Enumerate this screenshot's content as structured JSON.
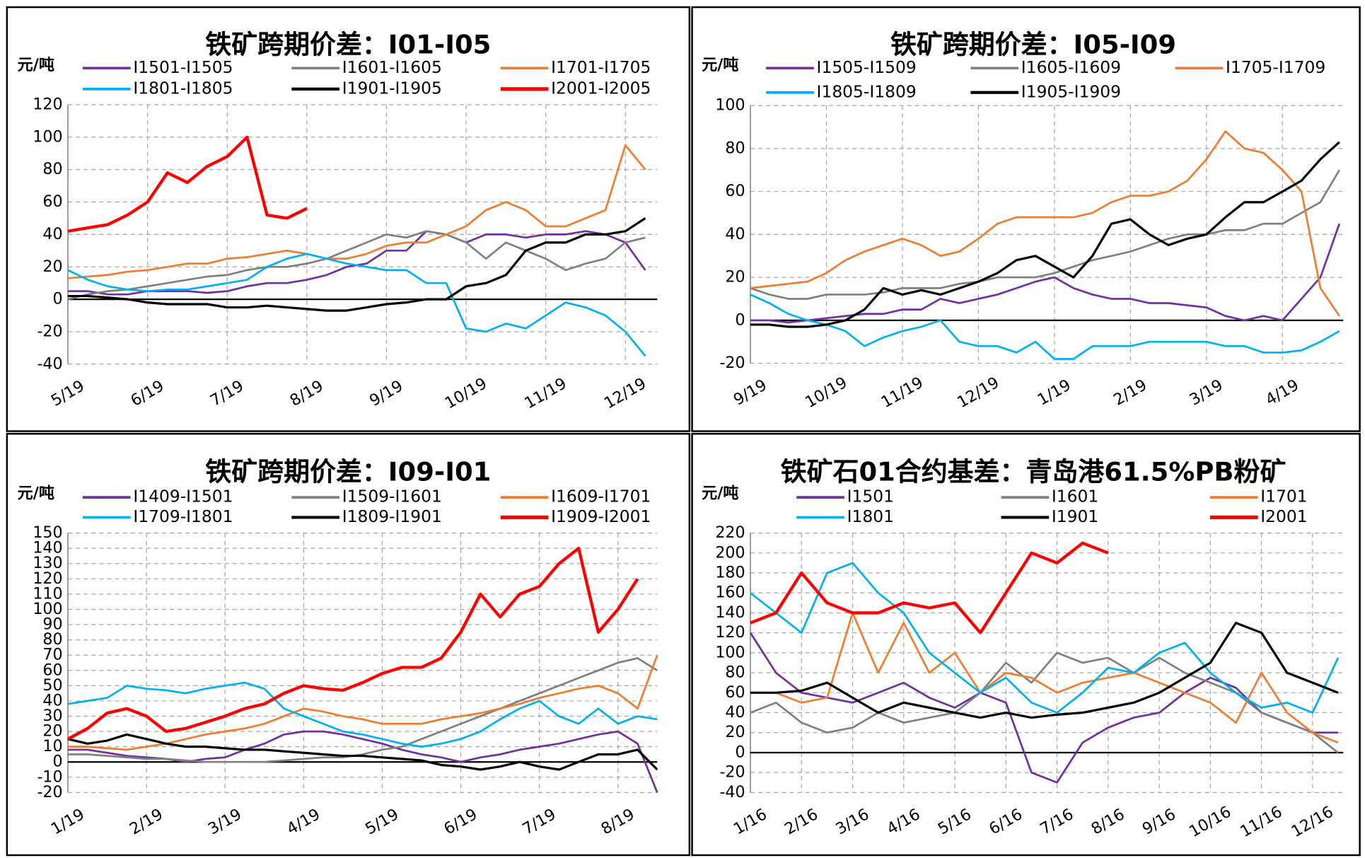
{
  "chart_data": [
    {
      "type": "line",
      "title": "铁矿跨期价差：I01-I05",
      "unit": "元/吨",
      "x": [
        0,
        0.25,
        0.5,
        0.75,
        1,
        1.25,
        1.5,
        1.75,
        2,
        2.25,
        2.5,
        2.75,
        3,
        3.25,
        3.5,
        3.75,
        4,
        4.25,
        4.5,
        4.75,
        5,
        5.25,
        5.5,
        5.75,
        6,
        6.25,
        6.5,
        6.75,
        7,
        7.25
      ],
      "xlim": [
        0,
        7.4
      ],
      "xticks": [
        {
          "value": 0,
          "label": "5/19"
        },
        {
          "value": 1,
          "label": "6/19"
        },
        {
          "value": 2,
          "label": "7/19"
        },
        {
          "value": 3,
          "label": "8/19"
        },
        {
          "value": 4,
          "label": "9/19"
        },
        {
          "value": 5,
          "label": "10/19"
        },
        {
          "value": 6,
          "label": "11/19"
        },
        {
          "value": 7,
          "label": "12/19"
        }
      ],
      "ylim": [
        -40,
        120
      ],
      "yticks": [
        -40,
        -20,
        0,
        20,
        40,
        60,
        80,
        100,
        120
      ],
      "grid": true,
      "series": [
        {
          "name": "I1501-I1505",
          "color": "#7030a0",
          "values": [
            5,
            5,
            3,
            3,
            5,
            5,
            5,
            4,
            5,
            8,
            10,
            10,
            12,
            15,
            20,
            22,
            30,
            30,
            42,
            40,
            35,
            40,
            40,
            38,
            40,
            40,
            42,
            40,
            35,
            18
          ]
        },
        {
          "name": "I1601-I1605",
          "color": "#808080",
          "values": [
            0,
            3,
            5,
            6,
            8,
            10,
            12,
            14,
            15,
            18,
            20,
            20,
            22,
            25,
            30,
            35,
            40,
            38,
            42,
            40,
            35,
            25,
            35,
            30,
            25,
            18,
            22,
            25,
            35,
            38
          ]
        },
        {
          "name": "I1701-I1705",
          "color": "#ed7d31",
          "values": [
            13,
            14,
            15,
            17,
            18,
            20,
            22,
            22,
            25,
            26,
            28,
            30,
            28,
            25,
            25,
            28,
            33,
            35,
            35,
            40,
            45,
            55,
            60,
            55,
            45,
            45,
            50,
            55,
            95,
            80
          ]
        },
        {
          "name": "I1801-I1805",
          "color": "#00b0f0",
          "values": [
            18,
            12,
            8,
            6,
            5,
            6,
            6,
            8,
            10,
            12,
            20,
            25,
            28,
            25,
            22,
            20,
            18,
            18,
            10,
            10,
            -18,
            -20,
            -15,
            -18,
            -10,
            -2,
            -5,
            -10,
            -20,
            -35
          ]
        },
        {
          "name": "I1901-I1905",
          "color": "#000000",
          "values": [
            2,
            2,
            1,
            0,
            -2,
            -3,
            -3,
            -3,
            -5,
            -5,
            -4,
            -5,
            -6,
            -7,
            -7,
            -5,
            -3,
            -2,
            0,
            0,
            8,
            10,
            15,
            30,
            35,
            35,
            40,
            40,
            42,
            50
          ]
        },
        {
          "name": "I2001-I2005",
          "color": "#ff0000",
          "values": [
            42,
            44,
            46,
            52,
            60,
            78,
            72,
            82,
            88,
            100,
            52,
            50,
            56,
            null,
            null,
            null,
            null,
            null,
            null,
            null,
            null,
            null,
            null,
            null,
            null,
            null,
            null,
            null,
            null,
            null
          ]
        }
      ]
    },
    {
      "type": "line",
      "title": "铁矿跨期价差：I05-I09",
      "unit": "元/吨",
      "x": [
        0,
        0.25,
        0.5,
        0.75,
        1,
        1.25,
        1.5,
        1.75,
        2,
        2.25,
        2.5,
        2.75,
        3,
        3.25,
        3.5,
        3.75,
        4,
        4.25,
        4.5,
        4.75,
        5,
        5.25,
        5.5,
        5.75,
        6,
        6.25,
        6.5,
        6.75,
        7,
        7.25,
        7.5,
        7.75
      ],
      "xlim": [
        0,
        7.8
      ],
      "xticks": [
        {
          "value": 0,
          "label": "9/19"
        },
        {
          "value": 1,
          "label": "10/19"
        },
        {
          "value": 2,
          "label": "11/19"
        },
        {
          "value": 3,
          "label": "12/19"
        },
        {
          "value": 4,
          "label": "1/19"
        },
        {
          "value": 5,
          "label": "2/19"
        },
        {
          "value": 6,
          "label": "3/19"
        },
        {
          "value": 7,
          "label": "4/19"
        }
      ],
      "ylim": [
        -20,
        100
      ],
      "yticks": [
        -20,
        0,
        20,
        40,
        60,
        80,
        100
      ],
      "grid": true,
      "series": [
        {
          "name": "I1505-I1509",
          "color": "#7030a0",
          "values": [
            0,
            0,
            -1,
            0,
            1,
            2,
            3,
            3,
            5,
            5,
            10,
            8,
            10,
            12,
            15,
            18,
            20,
            15,
            12,
            10,
            10,
            8,
            8,
            7,
            6,
            2,
            0,
            2,
            0,
            10,
            20,
            45
          ]
        },
        {
          "name": "I1605-I1609",
          "color": "#808080",
          "values": [
            15,
            12,
            10,
            10,
            12,
            12,
            12,
            13,
            15,
            15,
            15,
            17,
            18,
            20,
            20,
            20,
            22,
            25,
            28,
            30,
            32,
            35,
            38,
            40,
            40,
            42,
            42,
            45,
            45,
            50,
            55,
            70
          ]
        },
        {
          "name": "I1705-I1709",
          "color": "#ed7d31",
          "values": [
            15,
            16,
            17,
            18,
            22,
            28,
            32,
            35,
            38,
            35,
            30,
            32,
            38,
            45,
            48,
            48,
            48,
            48,
            50,
            55,
            58,
            58,
            60,
            65,
            75,
            88,
            80,
            78,
            70,
            60,
            15,
            2
          ]
        },
        {
          "name": "I1805-I1809",
          "color": "#00b0f0",
          "values": [
            12,
            8,
            3,
            0,
            -2,
            -5,
            -12,
            -8,
            -5,
            -3,
            0,
            -10,
            -12,
            -12,
            -15,
            -10,
            -18,
            -18,
            -12,
            -12,
            -12,
            -10,
            -10,
            -10,
            -10,
            -12,
            -12,
            -15,
            -15,
            -14,
            -10,
            -5
          ]
        },
        {
          "name": "I1905-I1909",
          "color": "#000000",
          "values": [
            -2,
            -2,
            -3,
            -3,
            -2,
            0,
            5,
            15,
            12,
            14,
            12,
            15,
            18,
            22,
            28,
            30,
            25,
            20,
            30,
            45,
            47,
            40,
            35,
            38,
            40,
            48,
            55,
            55,
            60,
            65,
            75,
            83
          ]
        }
      ]
    },
    {
      "type": "line",
      "title": "铁矿跨期价差：I09-I01",
      "unit": "元/吨",
      "x": [
        0,
        0.25,
        0.5,
        0.75,
        1,
        1.25,
        1.5,
        1.75,
        2,
        2.25,
        2.5,
        2.75,
        3,
        3.25,
        3.5,
        3.75,
        4,
        4.25,
        4.5,
        4.75,
        5,
        5.25,
        5.5,
        5.75,
        6,
        6.25,
        6.5,
        6.75,
        7,
        7.25,
        7.5
      ],
      "xlim": [
        0,
        7.5
      ],
      "xticks": [
        {
          "value": 0,
          "label": "1/19"
        },
        {
          "value": 1,
          "label": "2/19"
        },
        {
          "value": 2,
          "label": "3/19"
        },
        {
          "value": 3,
          "label": "4/19"
        },
        {
          "value": 4,
          "label": "5/19"
        },
        {
          "value": 5,
          "label": "6/19"
        },
        {
          "value": 6,
          "label": "7/19"
        },
        {
          "value": 7,
          "label": "8/19"
        }
      ],
      "ylim": [
        -20,
        150
      ],
      "yticks": [
        -20,
        -10,
        0,
        10,
        20,
        30,
        40,
        50,
        60,
        70,
        80,
        90,
        100,
        110,
        120,
        130,
        140,
        150
      ],
      "grid": true,
      "series": [
        {
          "name": "I1409-I1501",
          "color": "#7030a0",
          "values": [
            8,
            8,
            6,
            4,
            3,
            2,
            0,
            2,
            3,
            8,
            12,
            18,
            20,
            20,
            18,
            15,
            12,
            8,
            5,
            3,
            0,
            3,
            5,
            8,
            10,
            12,
            15,
            18,
            20,
            12,
            -20
          ]
        },
        {
          "name": "I1509-I1601",
          "color": "#808080",
          "values": [
            5,
            5,
            4,
            3,
            2,
            2,
            1,
            0,
            0,
            0,
            0,
            1,
            2,
            3,
            3,
            5,
            8,
            10,
            15,
            20,
            25,
            30,
            35,
            40,
            45,
            50,
            55,
            60,
            65,
            68,
            60
          ]
        },
        {
          "name": "I1609-I1701",
          "color": "#ed7d31",
          "values": [
            10,
            10,
            9,
            8,
            10,
            12,
            15,
            18,
            20,
            22,
            25,
            30,
            35,
            33,
            30,
            28,
            25,
            25,
            25,
            28,
            30,
            32,
            35,
            38,
            42,
            45,
            48,
            50,
            45,
            35,
            70
          ]
        },
        {
          "name": "I1709-I1801",
          "color": "#00b0f0",
          "values": [
            38,
            40,
            42,
            50,
            48,
            47,
            45,
            48,
            50,
            52,
            48,
            35,
            30,
            25,
            20,
            18,
            15,
            12,
            10,
            12,
            15,
            20,
            28,
            35,
            40,
            30,
            25,
            35,
            25,
            30,
            28
          ]
        },
        {
          "name": "I1809-I1901",
          "color": "#000000",
          "values": [
            15,
            12,
            14,
            18,
            15,
            12,
            10,
            10,
            9,
            8,
            8,
            7,
            6,
            5,
            4,
            4,
            3,
            2,
            1,
            -2,
            -3,
            -5,
            -3,
            0,
            -3,
            -5,
            0,
            5,
            5,
            8,
            -5
          ]
        },
        {
          "name": "I1909-I2001",
          "color": "#ff0000",
          "values": [
            15,
            22,
            32,
            35,
            30,
            20,
            22,
            26,
            30,
            35,
            38,
            45,
            50,
            48,
            47,
            52,
            58,
            62,
            62,
            68,
            85,
            110,
            95,
            110,
            115,
            130,
            140,
            85,
            100,
            120,
            null
          ]
        }
      ]
    },
    {
      "type": "line",
      "title": "铁矿石01合约基差：青岛港61.5%PB粉矿",
      "unit": "元/吨",
      "x": [
        0,
        0.5,
        1,
        1.5,
        2,
        2.5,
        3,
        3.5,
        4,
        4.5,
        5,
        5.5,
        6,
        6.5,
        7,
        7.5,
        8,
        8.5,
        9,
        9.5,
        10,
        10.5,
        11,
        11.5
      ],
      "xlim": [
        0,
        11.6
      ],
      "xticks": [
        {
          "value": 0,
          "label": "1/16"
        },
        {
          "value": 1,
          "label": "2/16"
        },
        {
          "value": 2,
          "label": "3/16"
        },
        {
          "value": 3,
          "label": "4/16"
        },
        {
          "value": 4,
          "label": "5/16"
        },
        {
          "value": 5,
          "label": "6/16"
        },
        {
          "value": 6,
          "label": "7/16"
        },
        {
          "value": 7,
          "label": "8/16"
        },
        {
          "value": 8,
          "label": "9/16"
        },
        {
          "value": 9,
          "label": "10/16"
        },
        {
          "value": 10,
          "label": "11/16"
        },
        {
          "value": 11,
          "label": "12/16"
        }
      ],
      "ylim": [
        -40,
        220
      ],
      "yticks": [
        -40,
        -20,
        0,
        20,
        40,
        60,
        80,
        100,
        120,
        140,
        160,
        180,
        200,
        220
      ],
      "grid": true,
      "series": [
        {
          "name": "I1501",
          "color": "#7030a0",
          "values": [
            120,
            80,
            60,
            55,
            50,
            60,
            70,
            55,
            45,
            60,
            50,
            -20,
            -30,
            10,
            25,
            35,
            40,
            60,
            75,
            65,
            40,
            30,
            20,
            20
          ]
        },
        {
          "name": "I1601",
          "color": "#808080",
          "values": [
            40,
            50,
            30,
            20,
            25,
            40,
            30,
            35,
            40,
            60,
            90,
            70,
            100,
            90,
            95,
            80,
            95,
            80,
            70,
            60,
            40,
            30,
            20,
            0
          ]
        },
        {
          "name": "I1701",
          "color": "#ed7d31",
          "values": [
            60,
            60,
            50,
            55,
            140,
            80,
            130,
            80,
            100,
            60,
            80,
            75,
            60,
            70,
            75,
            80,
            70,
            60,
            50,
            30,
            80,
            40,
            20,
            10
          ]
        },
        {
          "name": "I1801",
          "color": "#00b0f0",
          "values": [
            160,
            140,
            120,
            180,
            190,
            160,
            140,
            100,
            80,
            60,
            75,
            50,
            40,
            60,
            85,
            80,
            100,
            110,
            80,
            60,
            45,
            50,
            40,
            95
          ]
        },
        {
          "name": "I1901",
          "color": "#000000",
          "values": [
            60,
            60,
            62,
            70,
            55,
            40,
            50,
            45,
            40,
            35,
            40,
            35,
            38,
            40,
            45,
            50,
            60,
            75,
            90,
            130,
            120,
            80,
            70,
            60
          ]
        },
        {
          "name": "I2001",
          "color": "#ff0000",
          "values": [
            130,
            140,
            180,
            150,
            140,
            140,
            150,
            145,
            150,
            120,
            160,
            200,
            190,
            210,
            200,
            null,
            null,
            null,
            null,
            null,
            null,
            null,
            null,
            null
          ]
        }
      ]
    }
  ]
}
